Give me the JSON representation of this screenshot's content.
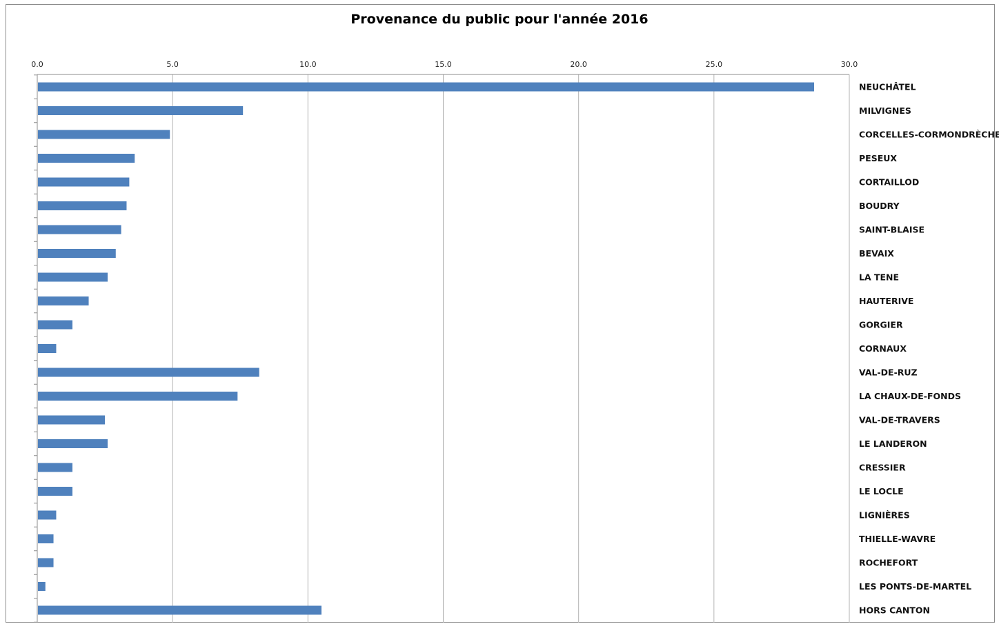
{
  "chart_data": {
    "type": "bar",
    "orientation": "horizontal",
    "title": "Provenance du public pour l'année 2016",
    "xlabel": "",
    "ylabel": "",
    "xlim": [
      0,
      30
    ],
    "x_ticks": [
      "0.0",
      "5.0",
      "10.0",
      "15.0",
      "20.0",
      "25.0",
      "30.0"
    ],
    "x_axis_position": "top",
    "grid": "vertical",
    "bar_color": "#4f81bd",
    "categories": [
      "NEUCHÂTEL",
      "MILVIGNES",
      "CORCELLES-CORMONDRÈCHE",
      "PESEUX",
      "CORTAILLOD",
      "BOUDRY",
      "SAINT-BLAISE",
      "BEVAIX",
      "LA TENE",
      "HAUTERIVE",
      "GORGIER",
      "CORNAUX",
      "VAL-DE-RUZ",
      "LA CHAUX-DE-FONDS",
      "VAL-DE-TRAVERS",
      "LE LANDERON",
      "CRESSIER",
      "LE LOCLE",
      "LIGNIÈRES",
      "THIELLE-WAVRE",
      "ROCHEFORT",
      "LES PONTS-DE-MARTEL",
      "HORS CANTON"
    ],
    "values": [
      28.7,
      7.6,
      4.9,
      3.6,
      3.4,
      3.3,
      3.1,
      2.9,
      2.6,
      1.9,
      1.3,
      0.7,
      8.2,
      7.4,
      2.5,
      2.6,
      1.3,
      1.3,
      0.7,
      0.6,
      0.6,
      0.3,
      10.5
    ]
  }
}
